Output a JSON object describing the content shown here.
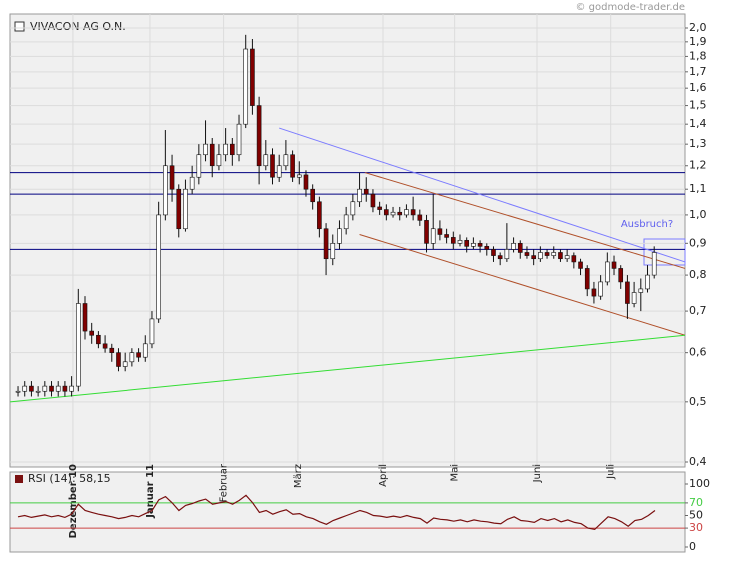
{
  "chart_data": [
    {
      "type": "candlestick",
      "title": "VIVACON AG O.N.",
      "watermark": "© godmode-trader.de",
      "annotation": "Ausbruch?",
      "log_scale": true,
      "ylim": [
        0.4,
        2.0
      ],
      "xlim": [
        -1.2,
        99.6
      ],
      "yticks": [
        {
          "value": 2.0,
          "label": "2,0"
        },
        {
          "value": 1.9,
          "label": "1,9"
        },
        {
          "value": 1.8,
          "label": "1,8"
        },
        {
          "value": 1.7,
          "label": "1,7"
        },
        {
          "value": 1.6,
          "label": "1,6"
        },
        {
          "value": 1.5,
          "label": "1,5"
        },
        {
          "value": 1.4,
          "label": "1,4"
        },
        {
          "value": 1.3,
          "label": "1,3"
        },
        {
          "value": 1.2,
          "label": "1,2"
        },
        {
          "value": 1.1,
          "label": "1,1"
        },
        {
          "value": 1.0,
          "label": "1,0"
        },
        {
          "value": 0.9,
          "label": "0,9"
        },
        {
          "value": 0.8,
          "label": "0,8"
        },
        {
          "value": 0.7,
          "label": "0,7"
        },
        {
          "value": 0.6,
          "label": "0,6"
        },
        {
          "value": 0.5,
          "label": "0,5"
        },
        {
          "value": 0.4,
          "label": "0,4"
        }
      ],
      "xticks": [
        {
          "value": 8.2,
          "label": "Dezember 10"
        },
        {
          "value": 19.7,
          "label": "Januar 11"
        },
        {
          "value": 30.7,
          "label": "Februar"
        },
        {
          "value": 41.8,
          "label": "März"
        },
        {
          "value": 54.5,
          "label": "April"
        },
        {
          "value": 65.2,
          "label": "Mai"
        },
        {
          "value": 77.5,
          "label": "Juni"
        },
        {
          "value": 88.5,
          "label": "Juli"
        }
      ],
      "up_color": "#ffffff",
      "down_color": "#800000",
      "ohlc": [
        [
          0.52,
          0.53,
          0.51,
          0.52
        ],
        [
          0.52,
          0.54,
          0.51,
          0.53
        ],
        [
          0.53,
          0.54,
          0.51,
          0.52
        ],
        [
          0.52,
          0.53,
          0.51,
          0.52
        ],
        [
          0.52,
          0.54,
          0.51,
          0.53
        ],
        [
          0.53,
          0.54,
          0.51,
          0.52
        ],
        [
          0.52,
          0.54,
          0.51,
          0.53
        ],
        [
          0.53,
          0.54,
          0.51,
          0.52
        ],
        [
          0.52,
          0.55,
          0.51,
          0.53
        ],
        [
          0.53,
          0.76,
          0.52,
          0.72
        ],
        [
          0.72,
          0.74,
          0.63,
          0.65
        ],
        [
          0.65,
          0.67,
          0.62,
          0.64
        ],
        [
          0.64,
          0.65,
          0.61,
          0.62
        ],
        [
          0.62,
          0.64,
          0.6,
          0.61
        ],
        [
          0.61,
          0.62,
          0.58,
          0.6
        ],
        [
          0.6,
          0.61,
          0.56,
          0.57
        ],
        [
          0.57,
          0.6,
          0.56,
          0.58
        ],
        [
          0.58,
          0.61,
          0.57,
          0.6
        ],
        [
          0.6,
          0.61,
          0.58,
          0.59
        ],
        [
          0.59,
          0.64,
          0.58,
          0.62
        ],
        [
          0.62,
          0.7,
          0.61,
          0.68
        ],
        [
          0.68,
          1.05,
          0.67,
          1.0
        ],
        [
          1.0,
          1.37,
          0.98,
          1.2
        ],
        [
          1.2,
          1.25,
          1.05,
          1.1
        ],
        [
          1.1,
          1.12,
          0.92,
          0.95
        ],
        [
          0.95,
          1.14,
          0.94,
          1.1
        ],
        [
          1.1,
          1.2,
          1.08,
          1.15
        ],
        [
          1.15,
          1.3,
          1.12,
          1.25
        ],
        [
          1.25,
          1.42,
          1.22,
          1.3
        ],
        [
          1.3,
          1.33,
          1.15,
          1.2
        ],
        [
          1.2,
          1.3,
          1.18,
          1.25
        ],
        [
          1.25,
          1.38,
          1.22,
          1.3
        ],
        [
          1.3,
          1.33,
          1.2,
          1.25
        ],
        [
          1.25,
          1.45,
          1.22,
          1.4
        ],
        [
          1.4,
          1.95,
          1.38,
          1.85
        ],
        [
          1.85,
          1.92,
          1.45,
          1.5
        ],
        [
          1.5,
          1.55,
          1.12,
          1.2
        ],
        [
          1.2,
          1.32,
          1.18,
          1.25
        ],
        [
          1.25,
          1.28,
          1.12,
          1.15
        ],
        [
          1.15,
          1.25,
          1.13,
          1.2
        ],
        [
          1.2,
          1.32,
          1.18,
          1.25
        ],
        [
          1.25,
          1.27,
          1.13,
          1.15
        ],
        [
          1.15,
          1.22,
          1.12,
          1.16
        ],
        [
          1.16,
          1.18,
          1.07,
          1.1
        ],
        [
          1.1,
          1.12,
          1.02,
          1.05
        ],
        [
          1.05,
          1.07,
          0.92,
          0.95
        ],
        [
          0.95,
          0.97,
          0.8,
          0.85
        ],
        [
          0.85,
          0.93,
          0.83,
          0.9
        ],
        [
          0.9,
          0.98,
          0.88,
          0.95
        ],
        [
          0.95,
          1.03,
          0.93,
          1.0
        ],
        [
          1.0,
          1.08,
          0.98,
          1.05
        ],
        [
          1.05,
          1.17,
          1.03,
          1.1
        ],
        [
          1.1,
          1.15,
          1.05,
          1.08
        ],
        [
          1.08,
          1.1,
          1.01,
          1.03
        ],
        [
          1.03,
          1.05,
          1.0,
          1.02
        ],
        [
          1.02,
          1.04,
          0.98,
          1.0
        ],
        [
          1.0,
          1.03,
          0.99,
          1.01
        ],
        [
          1.01,
          1.03,
          0.98,
          1.0
        ],
        [
          1.0,
          1.04,
          0.99,
          1.02
        ],
        [
          1.02,
          1.07,
          0.98,
          1.0
        ],
        [
          1.0,
          1.02,
          0.96,
          0.98
        ],
        [
          0.98,
          1.0,
          0.87,
          0.9
        ],
        [
          0.9,
          1.08,
          0.88,
          0.95
        ],
        [
          0.95,
          0.98,
          0.91,
          0.93
        ],
        [
          0.93,
          0.95,
          0.9,
          0.92
        ],
        [
          0.92,
          0.94,
          0.88,
          0.9
        ],
        [
          0.9,
          0.93,
          0.89,
          0.91
        ],
        [
          0.91,
          0.92,
          0.87,
          0.89
        ],
        [
          0.89,
          0.92,
          0.88,
          0.9
        ],
        [
          0.9,
          0.91,
          0.87,
          0.89
        ],
        [
          0.89,
          0.9,
          0.86,
          0.88
        ],
        [
          0.88,
          0.89,
          0.84,
          0.86
        ],
        [
          0.86,
          0.87,
          0.83,
          0.85
        ],
        [
          0.85,
          0.97,
          0.84,
          0.88
        ],
        [
          0.88,
          0.92,
          0.87,
          0.9
        ],
        [
          0.9,
          0.91,
          0.85,
          0.87
        ],
        [
          0.87,
          0.89,
          0.85,
          0.86
        ],
        [
          0.86,
          0.88,
          0.83,
          0.85
        ],
        [
          0.85,
          0.89,
          0.84,
          0.87
        ],
        [
          0.87,
          0.88,
          0.85,
          0.86
        ],
        [
          0.86,
          0.89,
          0.85,
          0.87
        ],
        [
          0.87,
          0.88,
          0.84,
          0.85
        ],
        [
          0.85,
          0.88,
          0.84,
          0.86
        ],
        [
          0.86,
          0.87,
          0.82,
          0.84
        ],
        [
          0.84,
          0.85,
          0.8,
          0.82
        ],
        [
          0.82,
          0.83,
          0.74,
          0.76
        ],
        [
          0.76,
          0.78,
          0.72,
          0.74
        ],
        [
          0.74,
          0.8,
          0.73,
          0.78
        ],
        [
          0.78,
          0.87,
          0.77,
          0.84
        ],
        [
          0.84,
          0.86,
          0.8,
          0.82
        ],
        [
          0.82,
          0.83,
          0.76,
          0.78
        ],
        [
          0.78,
          0.8,
          0.68,
          0.72
        ],
        [
          0.72,
          0.78,
          0.71,
          0.75
        ],
        [
          0.75,
          0.79,
          0.7,
          0.76
        ],
        [
          0.76,
          0.83,
          0.75,
          0.8
        ],
        [
          0.8,
          0.89,
          0.79,
          0.87
        ]
      ],
      "hlines": [
        1.17,
        1.08,
        0.88
      ],
      "hline_color": "#000080",
      "lines": [
        {
          "x": [
            39,
            99.6
          ],
          "y": [
            1.38,
            0.84
          ],
          "color": "#7b7bff"
        },
        {
          "x": [
            51.8,
            99.6
          ],
          "y": [
            1.17,
            0.82
          ],
          "color": "#b0502a"
        },
        {
          "x": [
            51,
            99.6
          ],
          "y": [
            0.93,
            0.64
          ],
          "color": "#b0502a"
        },
        {
          "x": [
            -1.2,
            99.6
          ],
          "y": [
            0.5,
            0.64
          ],
          "color": "#33dd33"
        }
      ]
    },
    {
      "type": "line",
      "label": "RSI (14): 58,15",
      "color": "#7a1010",
      "ylim": [
        0,
        100
      ],
      "yticks": [
        0,
        30,
        50,
        70,
        100
      ],
      "hlines": [
        70,
        30
      ],
      "hline_colors": [
        "#44cc44",
        "#cc4444"
      ],
      "values": [
        48,
        50,
        47,
        49,
        51,
        48,
        50,
        47,
        52,
        68,
        58,
        55,
        52,
        50,
        48,
        45,
        47,
        50,
        48,
        53,
        58,
        75,
        80,
        70,
        58,
        66,
        69,
        73,
        76,
        68,
        70,
        72,
        68,
        74,
        82,
        70,
        55,
        58,
        52,
        56,
        59,
        52,
        53,
        48,
        45,
        40,
        36,
        42,
        46,
        50,
        54,
        58,
        55,
        50,
        49,
        47,
        49,
        47,
        50,
        47,
        45,
        38,
        46,
        44,
        43,
        41,
        43,
        40,
        43,
        41,
        40,
        38,
        37,
        44,
        48,
        42,
        41,
        39,
        45,
        42,
        45,
        40,
        43,
        39,
        37,
        30,
        28,
        38,
        48,
        45,
        40,
        33,
        42,
        44,
        50,
        58
      ]
    }
  ]
}
